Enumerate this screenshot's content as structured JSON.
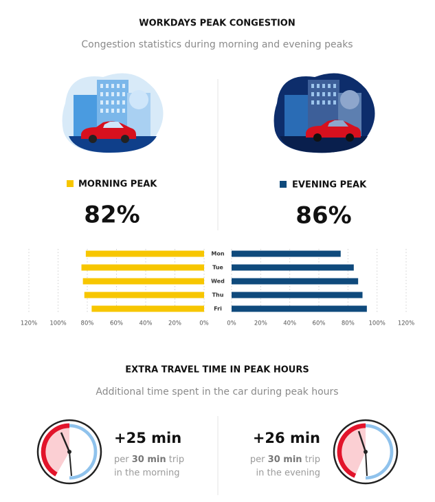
{
  "header": {
    "title": "WORKDAYS PEAK CONGESTION",
    "subtitle": "Congestion statistics during morning and evening peaks"
  },
  "morning": {
    "label": "MORNING PEAK",
    "value": "82%"
  },
  "evening": {
    "label": "EVENING PEAK",
    "value": "86%"
  },
  "chart_data": {
    "type": "butterfly-bar",
    "categories": [
      "Mon",
      "Tue",
      "Wed",
      "Thu",
      "Fri"
    ],
    "series": [
      {
        "name": "MORNING PEAK",
        "color": "#f7c600",
        "values": [
          81,
          84,
          83,
          82,
          77
        ]
      },
      {
        "name": "EVENING PEAK",
        "color": "#0f4a7c",
        "values": [
          75,
          84,
          87,
          90,
          93
        ]
      }
    ],
    "xlim": [
      0,
      120
    ],
    "xticks": [
      {
        "value": 0,
        "label": "0%"
      },
      {
        "value": 20,
        "label": "20%"
      },
      {
        "value": 40,
        "label": "40%"
      },
      {
        "value": 60,
        "label": "60%"
      },
      {
        "value": 80,
        "label": "80%"
      },
      {
        "value": 100,
        "label": "100%"
      },
      {
        "value": 120,
        "label": "120%"
      }
    ],
    "grid": true
  },
  "extra": {
    "title": "EXTRA TRAVEL TIME IN PEAK HOURS",
    "subtitle": "Additional time spent in the car during peak hours",
    "items": [
      {
        "value": "+25 min",
        "per": "per",
        "trip_length": "30 min",
        "trip": "trip",
        "when": "in the morning"
      },
      {
        "value": "+26 min",
        "per": "per",
        "trip_length": "30 min",
        "trip": "trip",
        "when": "in the evening"
      }
    ]
  }
}
